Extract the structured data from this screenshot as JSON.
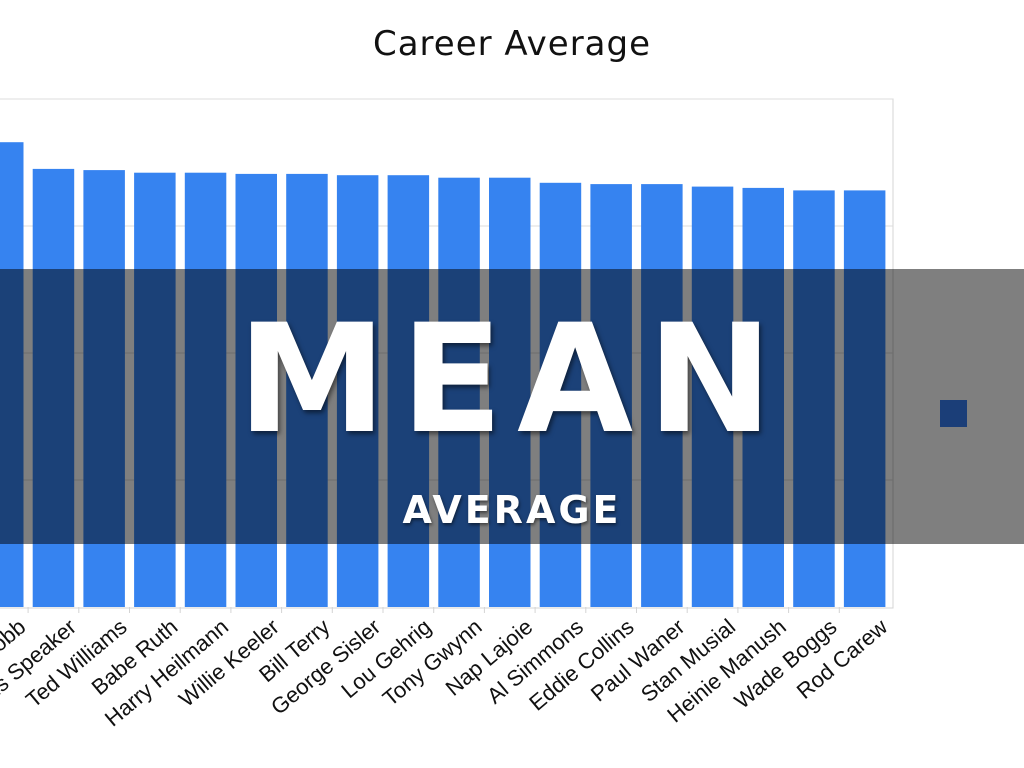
{
  "chart_data": {
    "type": "bar",
    "title": "Career Average",
    "xlabel": "",
    "ylabel": "",
    "grid": true,
    "bar_color": "#3683F0",
    "categories": [
      "Ty Cobb",
      "Tris Speaker",
      "Ted Williams",
      "Babe Ruth",
      "Harry Heilmann",
      "Willie Keeler",
      "Bill Terry",
      "George Sisler",
      "Lou Gehrig",
      "Tony Gwynn",
      "Nap Lajoie",
      "Al Simmons",
      "Eddie Collins",
      "Paul Waner",
      "Stan Musial",
      "Heinie Manush",
      "Wade Boggs",
      "Rod Carew"
    ],
    "values": [
      0.366,
      0.345,
      0.344,
      0.342,
      0.342,
      0.341,
      0.341,
      0.34,
      0.34,
      0.338,
      0.338,
      0.334,
      0.333,
      0.333,
      0.331,
      0.33,
      0.328,
      0.328
    ],
    "ylim": [
      0,
      0.4
    ]
  },
  "overlay": {
    "title": "MEAN",
    "subtitle": "AVERAGE",
    "band_color": "#000000",
    "marker_color": "#1B3E78"
  }
}
